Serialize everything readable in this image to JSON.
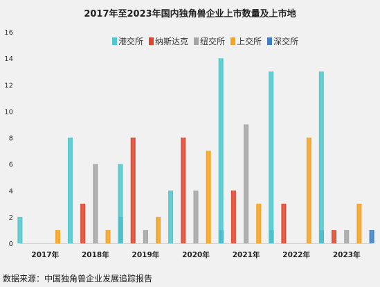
{
  "chart_data": {
    "type": "bar",
    "title": "2017年至2023年国内独角兽企业上市数量及上市地",
    "categories": [
      "2017年",
      "2018年",
      "2019年",
      "2020年",
      "2021年",
      "2022年",
      "2023年"
    ],
    "series": [
      {
        "name": "港交所",
        "values": [
          2,
          8,
          6,
          4,
          14,
          13,
          13
        ],
        "color": "#4fc7cc"
      },
      {
        "name": "纳斯达克",
        "values": [
          0,
          3,
          8,
          8,
          4,
          3,
          1
        ],
        "color": "#e0452c"
      },
      {
        "name": "纽交所",
        "values": [
          0,
          6,
          1,
          4,
          9,
          0,
          1
        ],
        "color": "#a5a5a5"
      },
      {
        "name": "上交所",
        "values": [
          1,
          1,
          2,
          7,
          3,
          8,
          3
        ],
        "color": "#f5a21f"
      },
      {
        "name": "深交所",
        "values": [
          0,
          2,
          0,
          1,
          1,
          1,
          1
        ],
        "color": "#3f7fc1"
      }
    ],
    "yticks": [
      "0",
      "2",
      "4",
      "6",
      "8",
      "10",
      "12",
      "14",
      "16"
    ],
    "ylim": [
      0,
      16
    ],
    "xlabel": "",
    "ylabel": "",
    "legend": "top",
    "grid": false
  },
  "source": "数据来源：中国独角兽企业发展追踪报告"
}
